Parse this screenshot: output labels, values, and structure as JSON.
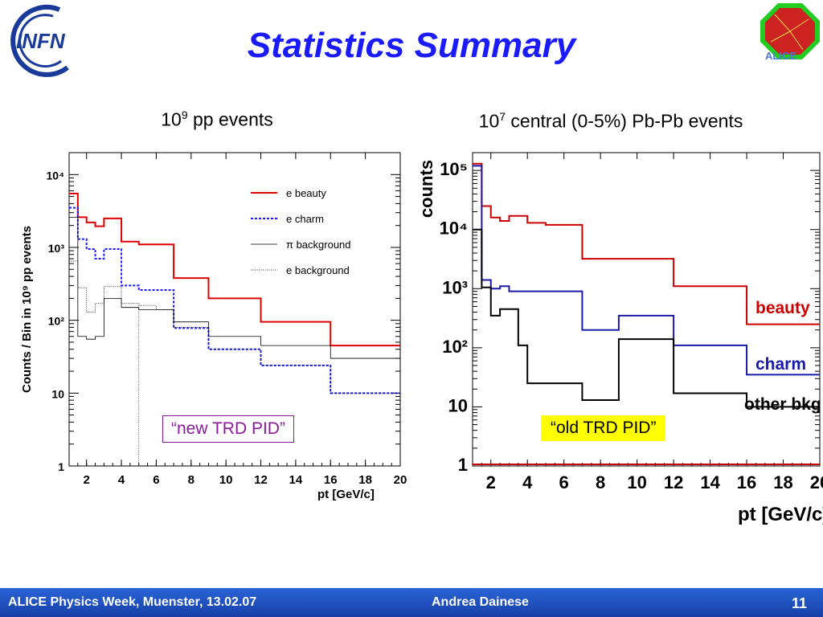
{
  "slide": {
    "title": "Statistics Summary",
    "left_heading_base": "10",
    "left_heading_exp": "9",
    "left_heading_rest": " pp events",
    "right_heading_base": "10",
    "right_heading_exp": "7",
    "right_heading_rest": " central (0-5%) Pb-Pb events",
    "logo_left_text": "INFN",
    "logo_right_text": "ALICE",
    "footer_left": "ALICE Physics Week, Muenster, 13.02.07",
    "footer_center": "Andrea Dainese",
    "page_number": "11",
    "colors": {
      "title": "#1a1aff",
      "footer": "#1f4fc0"
    }
  },
  "chart_data": [
    {
      "type": "line",
      "step": true,
      "log_y": true,
      "xlim": [
        1,
        20
      ],
      "ylim": [
        1,
        20000
      ],
      "x_ticks": [
        "2",
        "4",
        "6",
        "8",
        "10",
        "12",
        "14",
        "16",
        "18",
        "20"
      ],
      "y_ticks": [
        "1",
        "10",
        "10²",
        "10³",
        "10⁴"
      ],
      "ylabel": "Counts / Bin in 10⁹ pp events",
      "xlabel": "pt [GeV/c]",
      "legend": "top-right",
      "annotation": "“new TRD PID”",
      "bin_edges": [
        1,
        1.5,
        2,
        2.5,
        3,
        3.5,
        4,
        5,
        6,
        7,
        9,
        12,
        16,
        20
      ],
      "series": [
        {
          "name": "e beauty",
          "color": "#dd0000",
          "dash": "",
          "width": 2,
          "values": [
            5500,
            2600,
            2200,
            1950,
            2500,
            2500,
            1200,
            1100,
            1100,
            380,
            200,
            95,
            45
          ]
        },
        {
          "name": "e charm",
          "color": "#1a1aff",
          "dash": "3,2",
          "width": 2,
          "values": [
            3500,
            1300,
            950,
            700,
            950,
            950,
            300,
            260,
            260,
            78,
            40,
            24,
            10
          ]
        },
        {
          "name": "π background",
          "color": "#000000",
          "dash": "",
          "width": 0.8,
          "values": [
            2600,
            60,
            55,
            60,
            200,
            200,
            150,
            140,
            140,
            95,
            60,
            45,
            30
          ]
        },
        {
          "name": "e background",
          "color": "#000000",
          "dash": "1,1.5",
          "width": 0.8,
          "values": [
            650,
            280,
            130,
            170,
            290,
            290,
            170,
            160,
            140,
            80,
            40,
            24,
            10
          ]
        }
      ]
    },
    {
      "type": "line",
      "step": true,
      "log_y": true,
      "xlim": [
        1,
        20
      ],
      "ylim": [
        1,
        200000
      ],
      "x_ticks": [
        "2",
        "4",
        "6",
        "8",
        "10",
        "12",
        "14",
        "16",
        "18",
        "20"
      ],
      "y_ticks": [
        "1",
        "10",
        "10²",
        "10³",
        "10⁴",
        "10⁵"
      ],
      "ylabel": "counts",
      "xlabel": "pt [GeV/c]",
      "annotation": "“old TRD PID”",
      "bin_edges": [
        1,
        1.5,
        2,
        2.5,
        3,
        3.5,
        4,
        5,
        7,
        9,
        12,
        16,
        20
      ],
      "series": [
        {
          "name": "beauty",
          "color": "#cc0000",
          "width": 2,
          "values": [
            130000,
            25000,
            16000,
            14000,
            17000,
            17000,
            13000,
            12000,
            3200,
            3200,
            1100,
            250
          ]
        },
        {
          "name": "charm",
          "color": "#1a1aaa",
          "width": 2,
          "values": [
            120000,
            1400,
            1000,
            1100,
            900,
            900,
            900,
            900,
            200,
            350,
            110,
            35
          ]
        },
        {
          "name": "other bkg",
          "color": "#000000",
          "width": 2,
          "values": [
            10000,
            1050,
            350,
            450,
            450,
            110,
            25,
            25,
            13,
            140,
            17,
            10
          ]
        }
      ]
    }
  ]
}
